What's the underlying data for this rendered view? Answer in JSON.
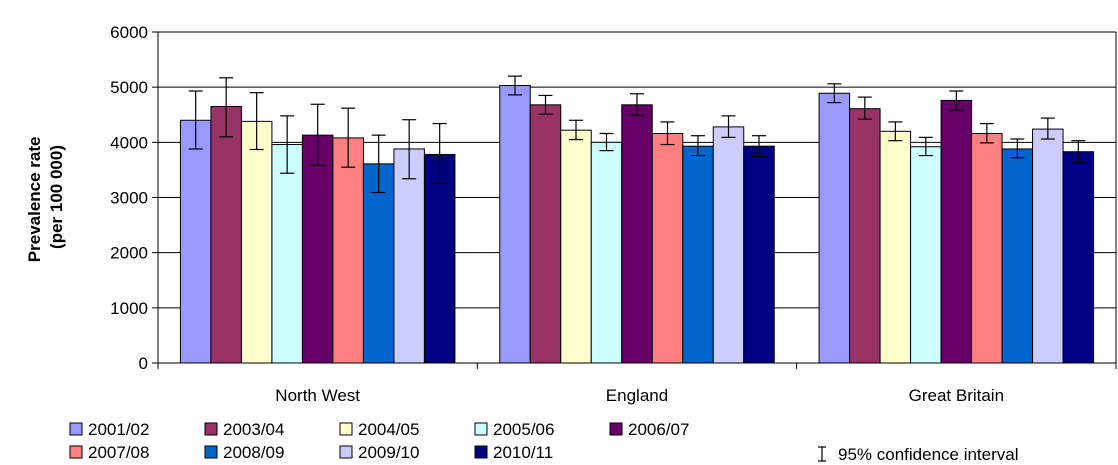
{
  "chart_data": {
    "type": "bar",
    "ylabel_lines": [
      "Prevalence rate",
      "(per 100 000)"
    ],
    "ylim": [
      0,
      6000
    ],
    "yticks": [
      0,
      1000,
      2000,
      3000,
      4000,
      5000,
      6000
    ],
    "grid": true,
    "legend_position": "bottom",
    "categories": [
      "North West",
      "England",
      "Great Britain"
    ],
    "series": [
      {
        "name": "2001/02",
        "color": "#9999ff",
        "values": [
          4400,
          5030,
          4890
        ],
        "ci_low": [
          3880,
          4860,
          4720
        ],
        "ci_high": [
          4930,
          5200,
          5060
        ]
      },
      {
        "name": "2003/04",
        "color": "#993366",
        "values": [
          4650,
          4680,
          4610
        ],
        "ci_low": [
          4100,
          4510,
          4420
        ],
        "ci_high": [
          5170,
          4850,
          4820
        ]
      },
      {
        "name": "2004/05",
        "color": "#ffffcc",
        "values": [
          4380,
          4220,
          4200
        ],
        "ci_low": [
          3870,
          4050,
          4030
        ],
        "ci_high": [
          4900,
          4400,
          4370
        ]
      },
      {
        "name": "2005/06",
        "color": "#ccffff",
        "values": [
          3960,
          4000,
          3920
        ],
        "ci_low": [
          3440,
          3850,
          3760
        ],
        "ci_high": [
          4480,
          4160,
          4090
        ]
      },
      {
        "name": "2006/07",
        "color": "#660066",
        "values": [
          4130,
          4680,
          4760
        ],
        "ci_low": [
          3580,
          4490,
          4580
        ],
        "ci_high": [
          4690,
          4880,
          4930
        ]
      },
      {
        "name": "2007/08",
        "color": "#ff8080",
        "values": [
          4080,
          4160,
          4160
        ],
        "ci_low": [
          3550,
          3960,
          3990
        ],
        "ci_high": [
          4620,
          4370,
          4340
        ]
      },
      {
        "name": "2008/09",
        "color": "#0066cc",
        "values": [
          3610,
          3930,
          3880
        ],
        "ci_low": [
          3090,
          3760,
          3720
        ],
        "ci_high": [
          4130,
          4120,
          4060
        ]
      },
      {
        "name": "2009/10",
        "color": "#ccccff",
        "values": [
          3880,
          4280,
          4240
        ],
        "ci_low": [
          3340,
          4090,
          4060
        ],
        "ci_high": [
          4410,
          4480,
          4440
        ]
      },
      {
        "name": "2010/11",
        "color": "#000080",
        "values": [
          3780,
          3930,
          3830
        ],
        "ci_low": [
          3260,
          3740,
          3630
        ],
        "ci_high": [
          4340,
          4120,
          4030
        ]
      }
    ],
    "ci_legend_label": "95% confidence interval"
  }
}
